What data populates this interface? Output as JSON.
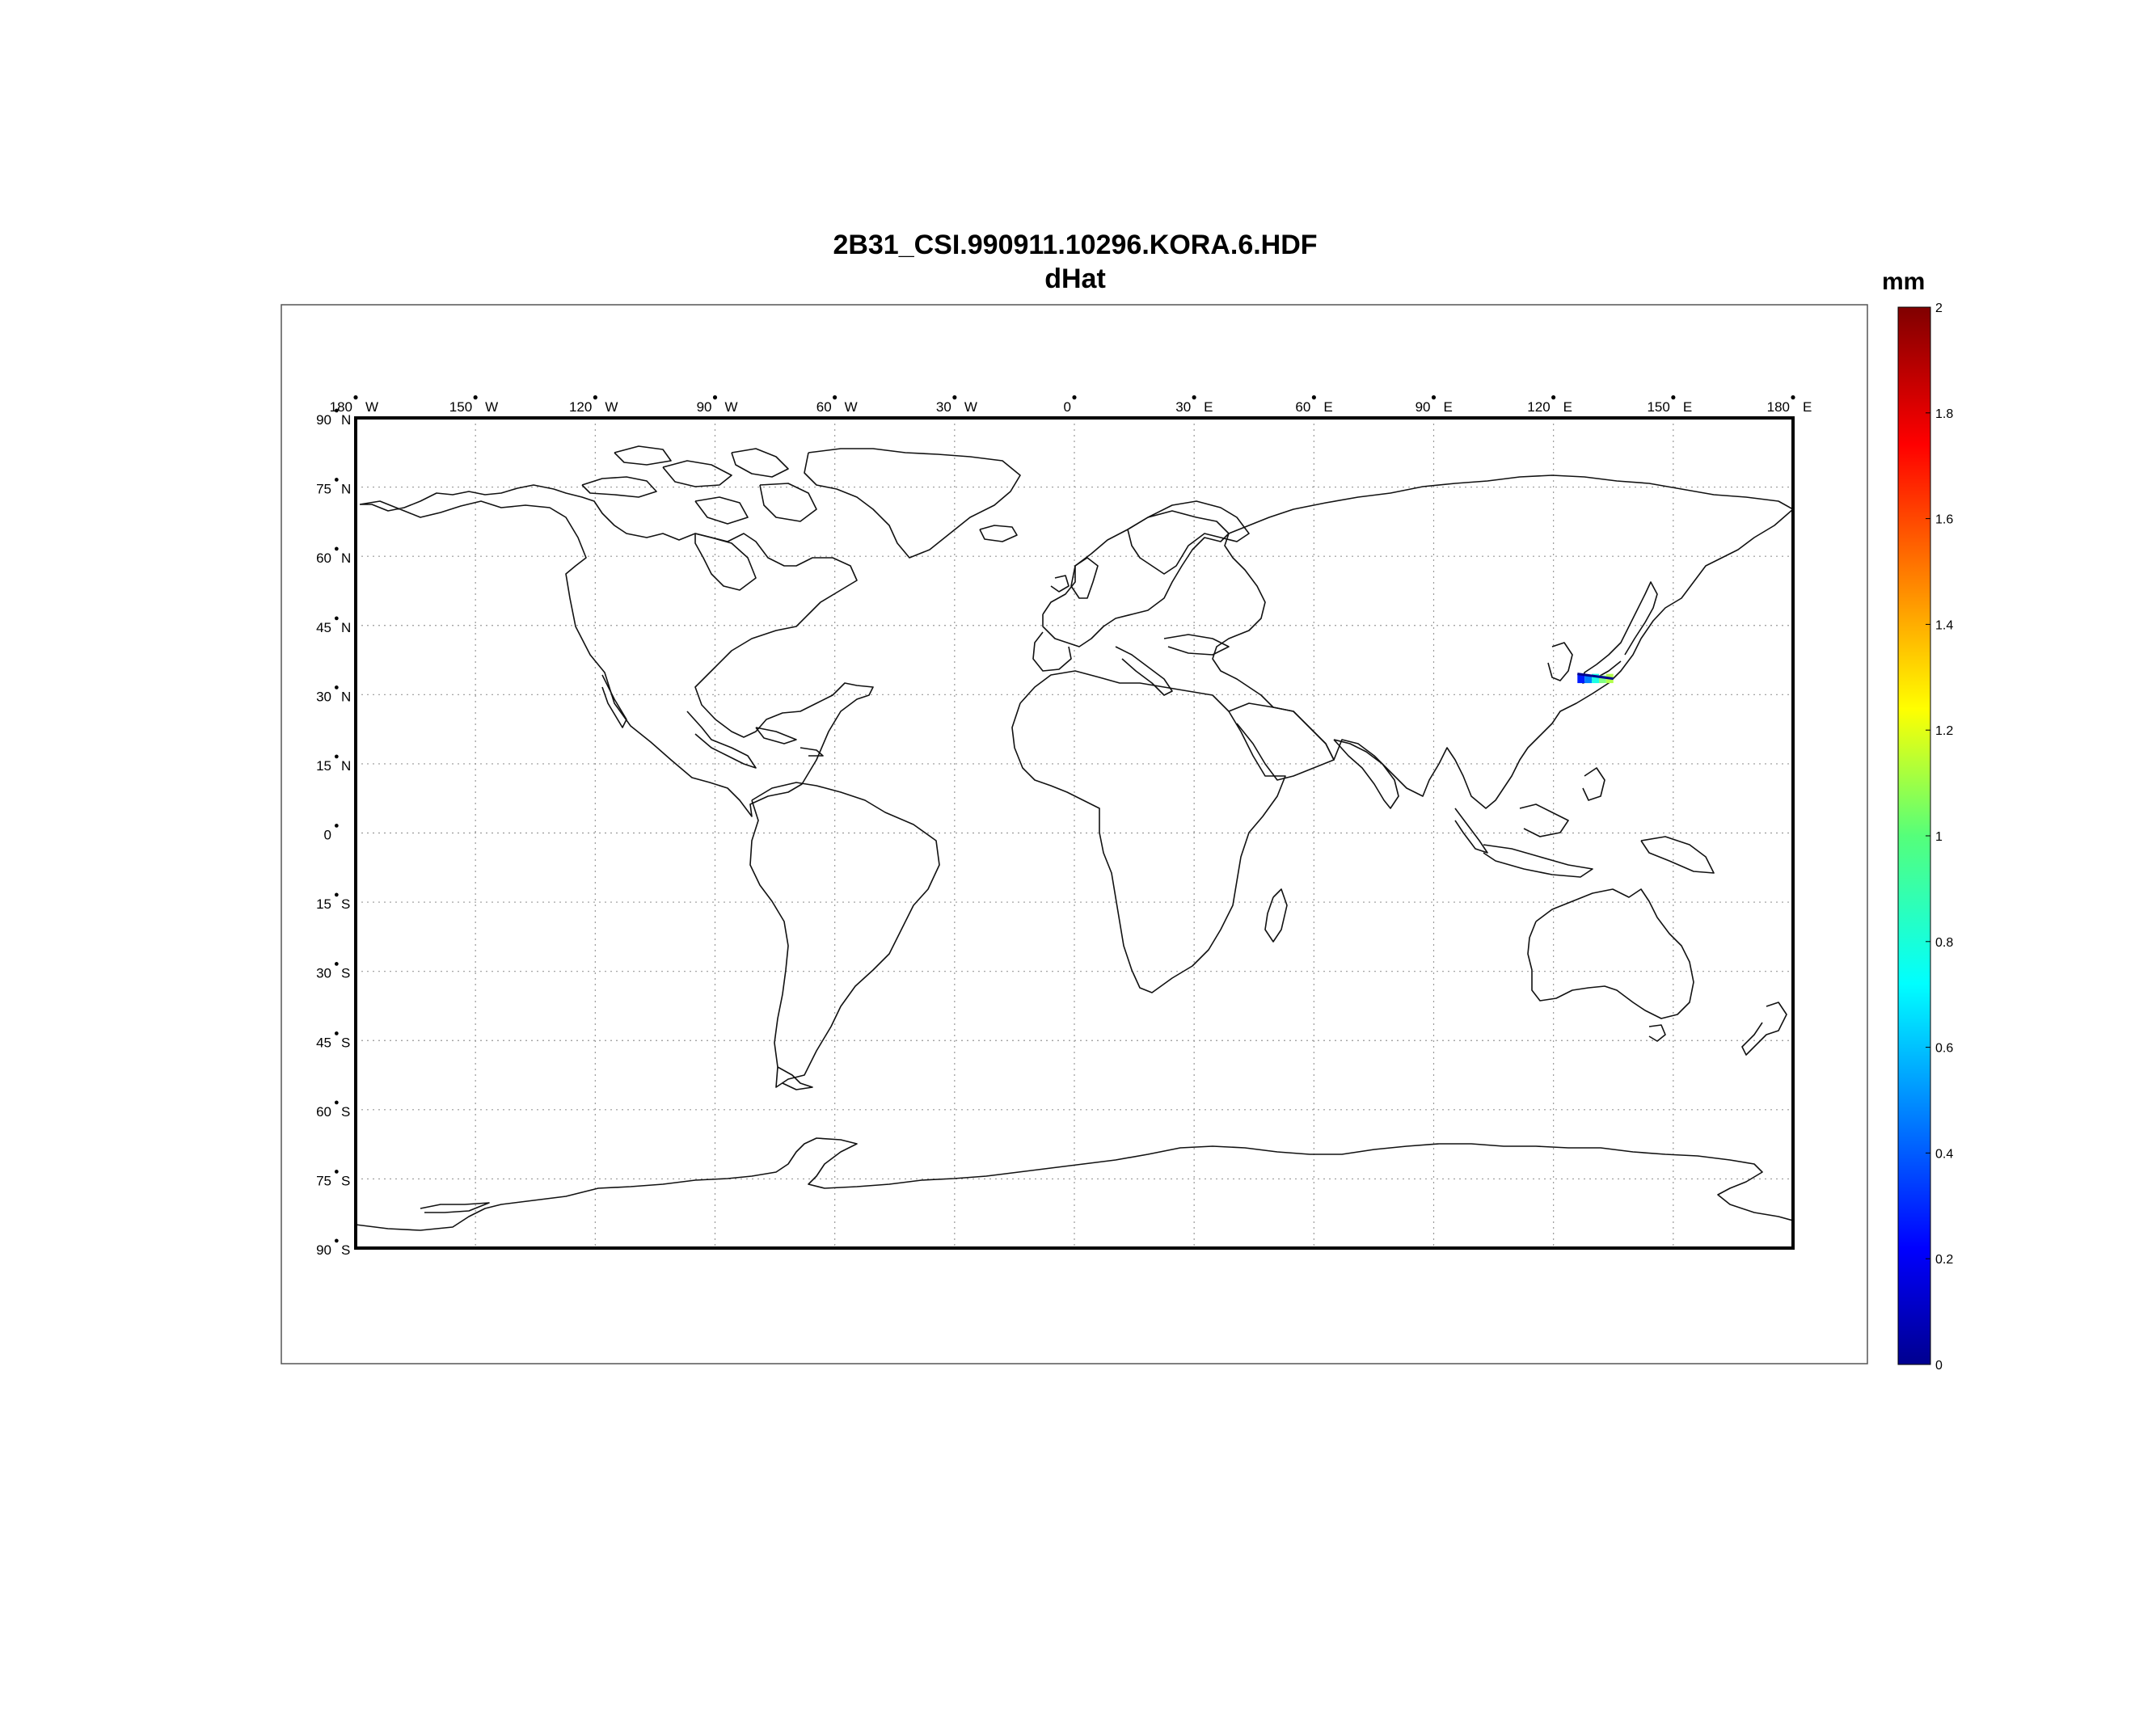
{
  "title": "2B31_CSI.990911.10296.KORA.6.HDF",
  "subtitle": "dHat",
  "colorbar": {
    "units": "mm",
    "ticks": [
      "2",
      "1.8",
      "1.6",
      "1.4",
      "1.2",
      "1",
      "0.8",
      "0.6",
      "0.4",
      "0.2",
      "0"
    ],
    "range": [
      0,
      2
    ],
    "colormap": "jet"
  },
  "map": {
    "projection": "equirectangular",
    "lon_range": [
      -180,
      180
    ],
    "lat_range": [
      -90,
      90
    ],
    "grid": true,
    "lon_ticks": [
      {
        "deg": "180",
        "hemi": "W"
      },
      {
        "deg": "150",
        "hemi": "W"
      },
      {
        "deg": "120",
        "hemi": "W"
      },
      {
        "deg": "90",
        "hemi": "W"
      },
      {
        "deg": "60",
        "hemi": "W"
      },
      {
        "deg": "30",
        "hemi": "W"
      },
      {
        "deg": "0",
        "hemi": ""
      },
      {
        "deg": "30",
        "hemi": "E"
      },
      {
        "deg": "60",
        "hemi": "E"
      },
      {
        "deg": "90",
        "hemi": "E"
      },
      {
        "deg": "120",
        "hemi": "E"
      },
      {
        "deg": "150",
        "hemi": "E"
      },
      {
        "deg": "180",
        "hemi": "E"
      }
    ],
    "lat_ticks": [
      {
        "deg": "90",
        "hemi": "N"
      },
      {
        "deg": "75",
        "hemi": "N"
      },
      {
        "deg": "60",
        "hemi": "N"
      },
      {
        "deg": "45",
        "hemi": "N"
      },
      {
        "deg": "30",
        "hemi": "N"
      },
      {
        "deg": "15",
        "hemi": "N"
      },
      {
        "deg": "0",
        "hemi": ""
      },
      {
        "deg": "15",
        "hemi": "S"
      },
      {
        "deg": "30",
        "hemi": "S"
      },
      {
        "deg": "45",
        "hemi": "S"
      },
      {
        "deg": "60",
        "hemi": "S"
      },
      {
        "deg": "75",
        "hemi": "S"
      },
      {
        "deg": "90",
        "hemi": "S"
      }
    ],
    "data_swath": {
      "region": "Korea / southern Japan",
      "lon_range": [
        126,
        135
      ],
      "lat_range": [
        32.5,
        34.5
      ],
      "values_mm": [
        0.3,
        0.5,
        0.8,
        1.0,
        1.1
      ]
    }
  }
}
